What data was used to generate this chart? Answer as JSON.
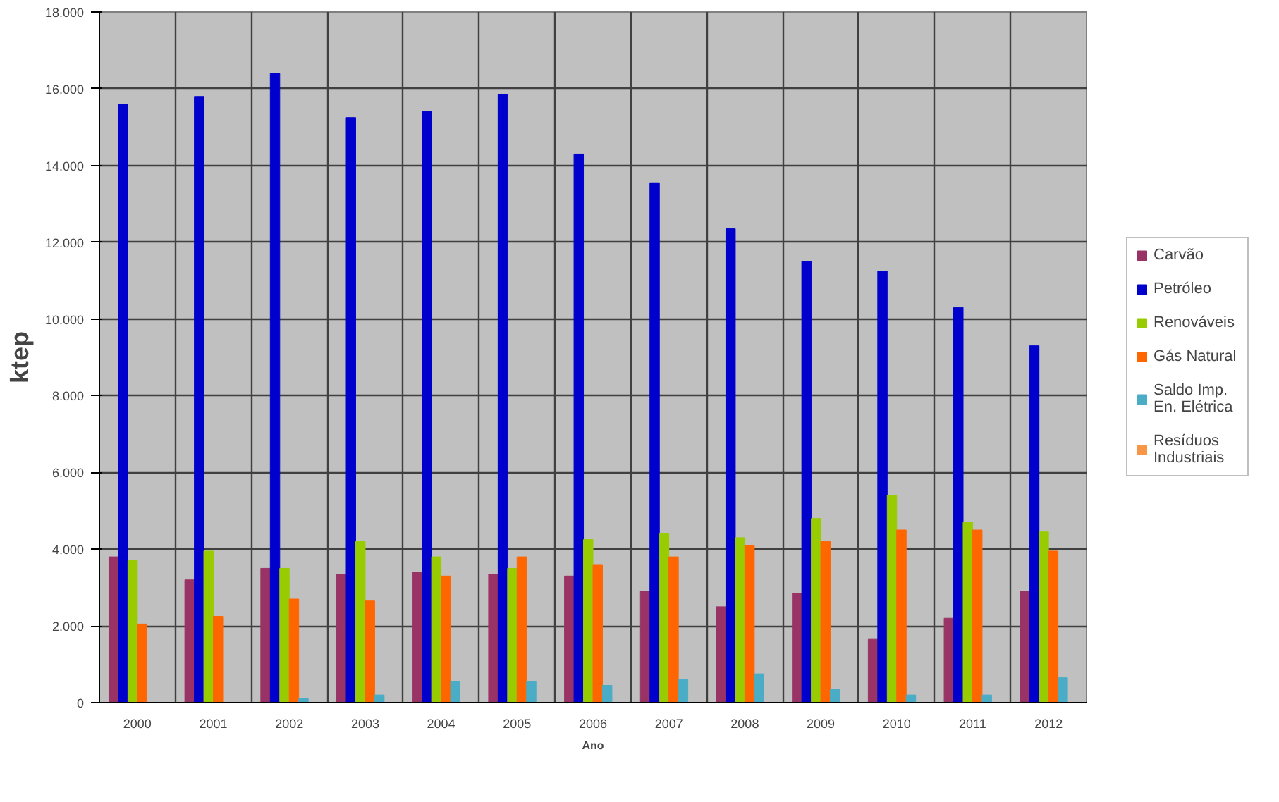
{
  "chart_data": {
    "type": "bar",
    "xlabel": "Ano",
    "ylabel": "ktep",
    "categories": [
      "2000",
      "2001",
      "2002",
      "2003",
      "2004",
      "2005",
      "2006",
      "2007",
      "2008",
      "2009",
      "2010",
      "2011",
      "2012"
    ],
    "series": [
      {
        "name": "Carvão",
        "color": "#993366",
        "values": [
          3800,
          3200,
          3500,
          3350,
          3400,
          3350,
          3300,
          2900,
          2500,
          2850,
          1650,
          2200,
          2900
        ]
      },
      {
        "name": "Petróleo",
        "color": "#0000cc",
        "values": [
          15600,
          15800,
          16400,
          15250,
          15400,
          15850,
          14300,
          13550,
          12350,
          11500,
          11250,
          10300,
          9300
        ]
      },
      {
        "name": "Renováveis",
        "color": "#99cc00",
        "values": [
          3700,
          3950,
          3500,
          4200,
          3800,
          3500,
          4250,
          4400,
          4300,
          4800,
          5400,
          4700,
          4450
        ]
      },
      {
        "name": "Gás Natural",
        "color": "#ff6600",
        "values": [
          2050,
          2250,
          2700,
          2650,
          3300,
          3800,
          3600,
          3800,
          4100,
          4200,
          4500,
          4500,
          3950
        ]
      },
      {
        "name": "Saldo Imp. En. Elétrica",
        "color": "#4bacc6",
        "values": [
          0,
          0,
          100,
          200,
          550,
          550,
          450,
          600,
          750,
          350,
          200,
          200,
          650
        ]
      },
      {
        "name": "Resíduos Industriais",
        "color": "#f79646",
        "values": [
          null,
          null,
          null,
          null,
          null,
          null,
          null,
          null,
          null,
          null,
          null,
          null,
          null
        ]
      }
    ],
    "ylim": [
      0,
      18000
    ],
    "yticks": [
      0,
      {
        "value": 2000,
        "label": "2.000"
      },
      {
        "value": 4000,
        "label": "4.000"
      },
      {
        "value": 6000,
        "label": "6.000"
      },
      {
        "value": 8000,
        "label": "8.000"
      },
      {
        "value": 10000,
        "label": "10.000"
      },
      {
        "value": 12000,
        "label": "12.000"
      },
      {
        "value": 14000,
        "label": "14.000"
      },
      {
        "value": 16000,
        "label": "16.000"
      },
      {
        "value": 18000,
        "label": "18.000"
      }
    ],
    "grid": true,
    "legend": "right"
  }
}
